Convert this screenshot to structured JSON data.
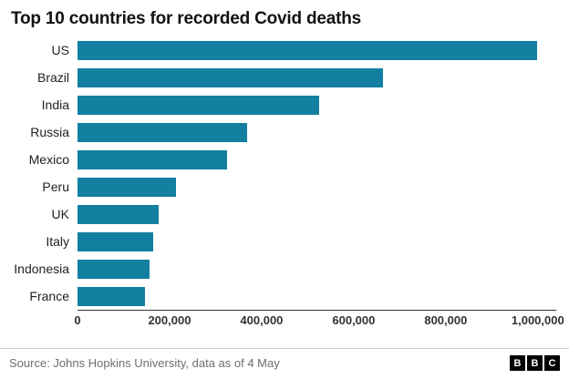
{
  "title": "Top 10 countries for recorded Covid deaths",
  "footer": {
    "source": "Source: Johns Hopkins University, data as of 4 May",
    "logo_letters": [
      "B",
      "B",
      "C"
    ]
  },
  "colors": {
    "bar": "#1380A1",
    "axis": "#333333",
    "source_text": "#6e6e73"
  },
  "chart_data": {
    "type": "bar",
    "orientation": "horizontal",
    "title": "Top 10 countries for recorded Covid deaths",
    "categories": [
      "US",
      "Brazil",
      "India",
      "Russia",
      "Mexico",
      "Peru",
      "UK",
      "Italy",
      "Indonesia",
      "France"
    ],
    "values": [
      999000,
      663000,
      524000,
      369000,
      324000,
      213000,
      176000,
      164000,
      156000,
      146000
    ],
    "xlim": [
      0,
      1040000
    ],
    "x_ticks": [
      0,
      200000,
      400000,
      600000,
      800000,
      1000000
    ],
    "x_tick_labels": [
      "0",
      "200,000",
      "400,000",
      "600,000",
      "800,000",
      "1,000,000"
    ],
    "xlabel": "",
    "ylabel": "",
    "grid": false,
    "legend": false,
    "source": "Johns Hopkins University, data as of 4 May"
  }
}
